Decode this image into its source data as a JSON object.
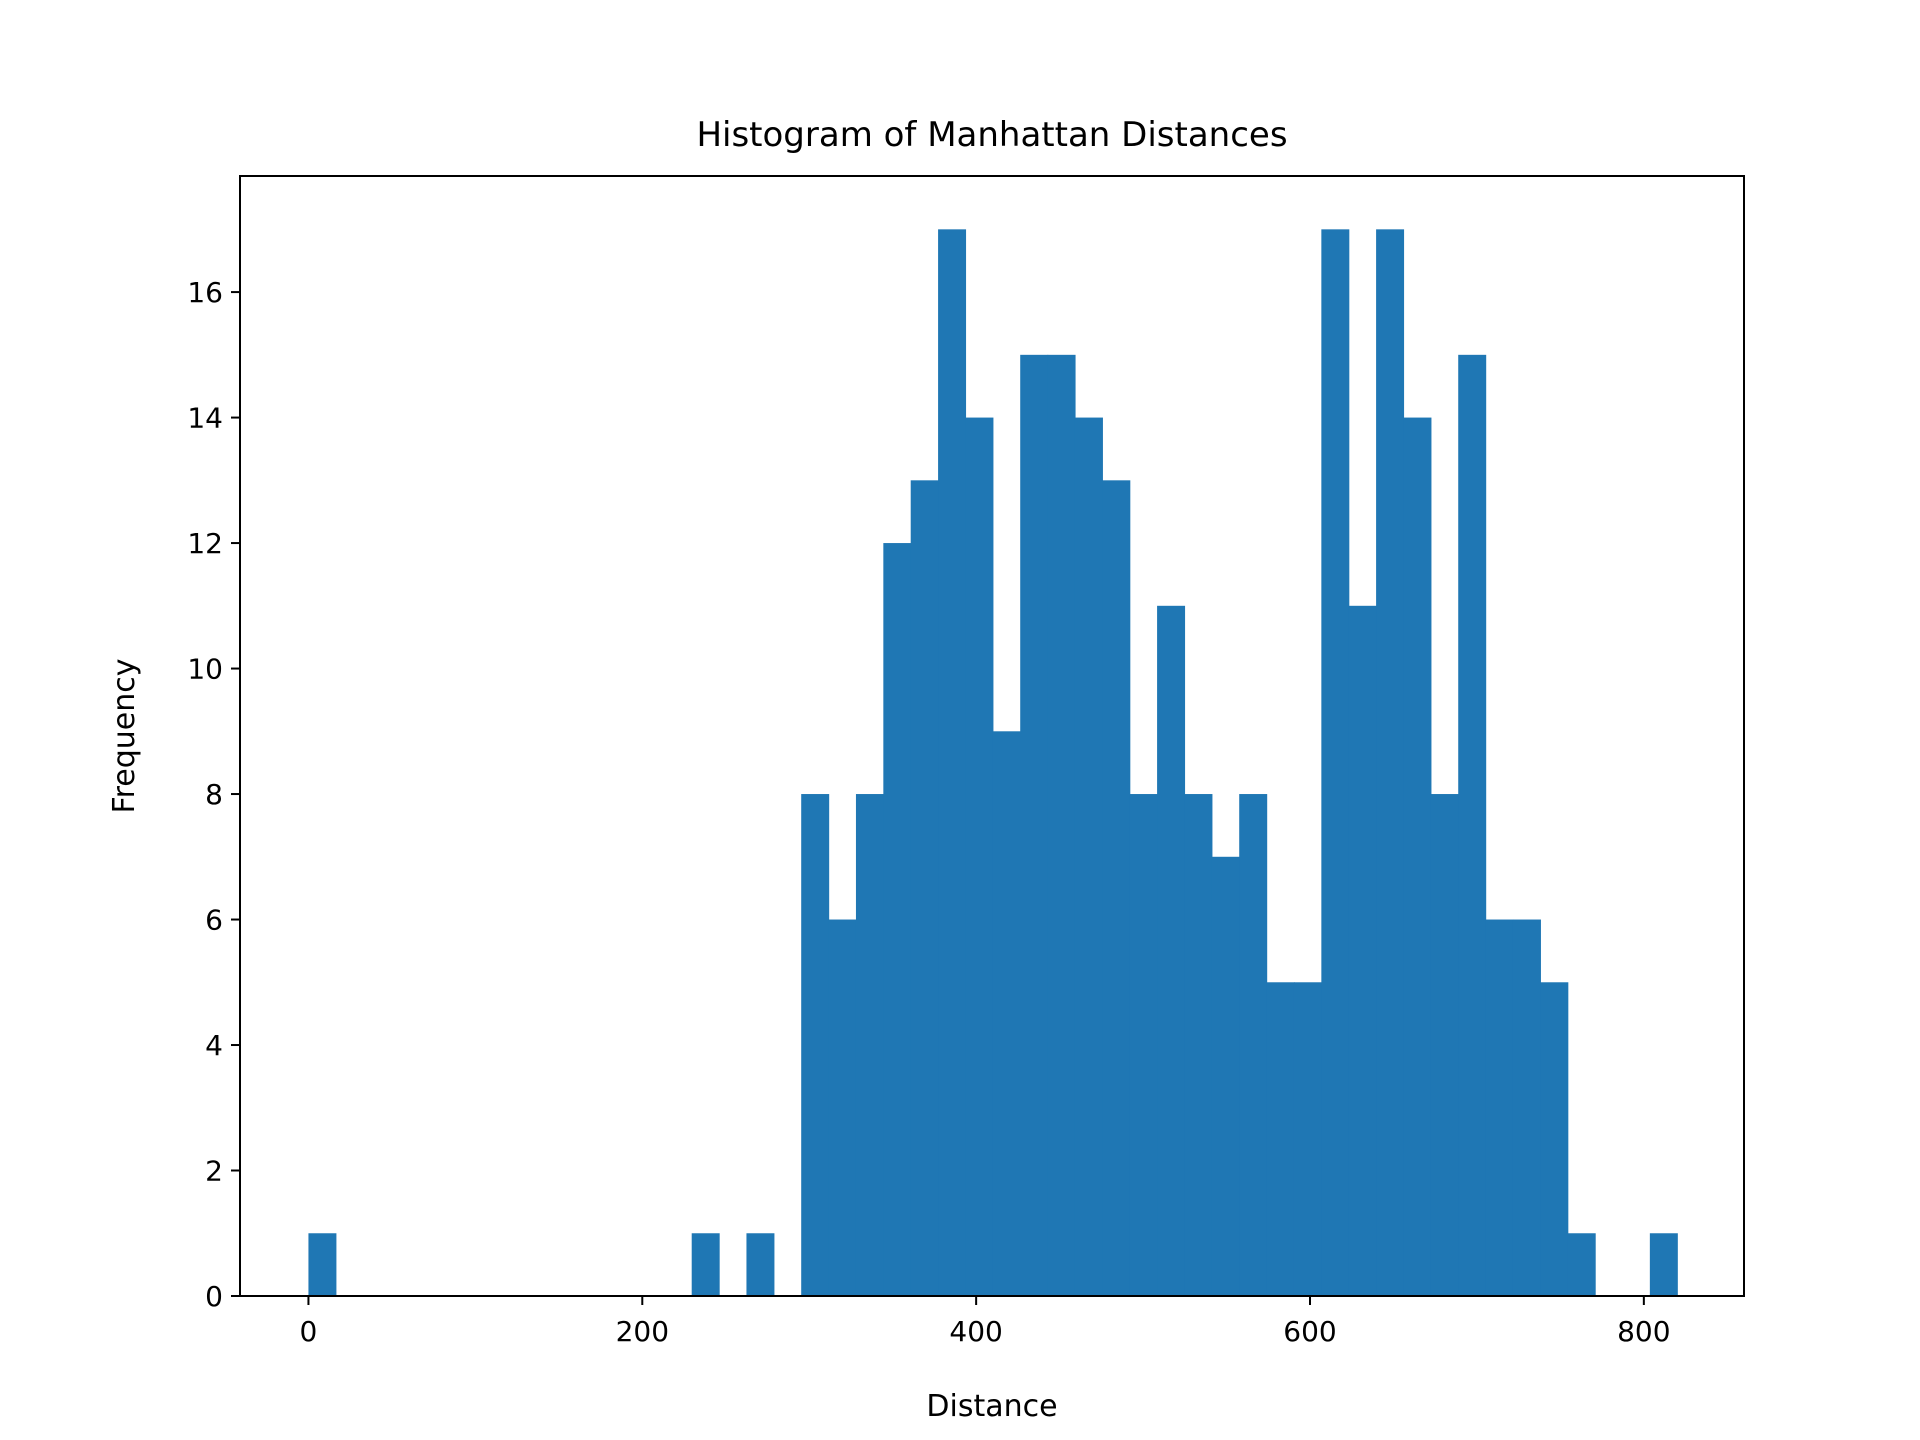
{
  "chart_data": {
    "type": "bar",
    "title": "Histogram of Manhattan Distances",
    "xlabel": "Distance",
    "ylabel": "Frequency",
    "xlim": [
      -41,
      860
    ],
    "ylim": [
      0,
      17.85
    ],
    "xticks": [
      0,
      200,
      400,
      600,
      800
    ],
    "yticks": [
      0,
      2,
      4,
      6,
      8,
      10,
      12,
      14,
      16
    ],
    "bin_start": 0,
    "bin_width": 16.4,
    "counts": [
      1,
      0,
      0,
      0,
      0,
      0,
      0,
      0,
      0,
      0,
      0,
      0,
      0,
      0,
      1,
      0,
      1,
      0,
      8,
      6,
      8,
      12,
      13,
      17,
      14,
      9,
      15,
      15,
      14,
      13,
      8,
      11,
      8,
      7,
      8,
      5,
      5,
      17,
      11,
      17,
      14,
      8,
      15,
      6,
      6,
      5,
      1,
      0,
      0,
      1
    ],
    "bar_color": "#1f77b4",
    "grid": false,
    "legend": "none"
  }
}
